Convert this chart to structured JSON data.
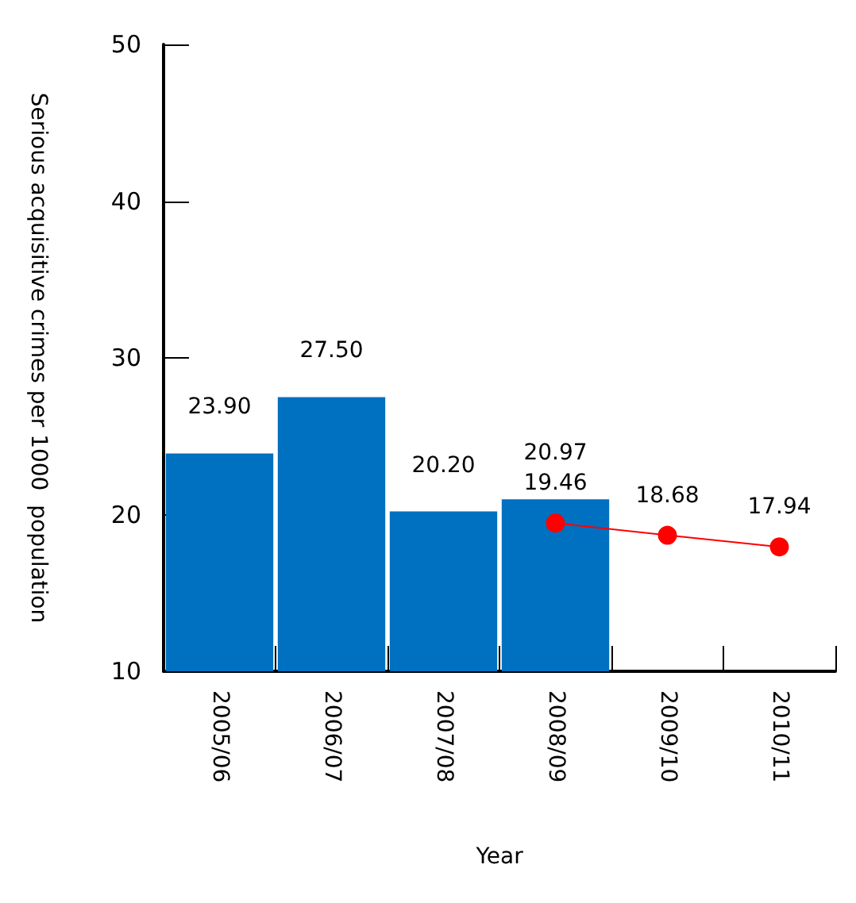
{
  "chart_data": {
    "type": "bar",
    "xlabel": "Year",
    "ylabel": "Serious acquisitive crimes per 1000  population",
    "categories": [
      "2005/06",
      "2006/07",
      "2007/08",
      "2008/09",
      "2009/10",
      "2010/11"
    ],
    "ylim": [
      10,
      50
    ],
    "yticks": [
      10,
      20,
      30,
      40,
      50
    ],
    "series": [
      {
        "color": "#0070c0",
        "values": [
          23.9,
          27.5,
          20.2,
          20.97,
          null,
          null
        ],
        "value_labels": [
          "23.90",
          "27.50",
          "20.20",
          "20.97",
          null,
          null
        ]
      },
      {
        "type": "line",
        "color": "#ff0000",
        "marker": "circle",
        "values": [
          null,
          null,
          null,
          19.46,
          18.68,
          17.94
        ],
        "value_labels": [
          null,
          null,
          null,
          "19.46",
          "18.68",
          "17.94"
        ]
      }
    ]
  }
}
